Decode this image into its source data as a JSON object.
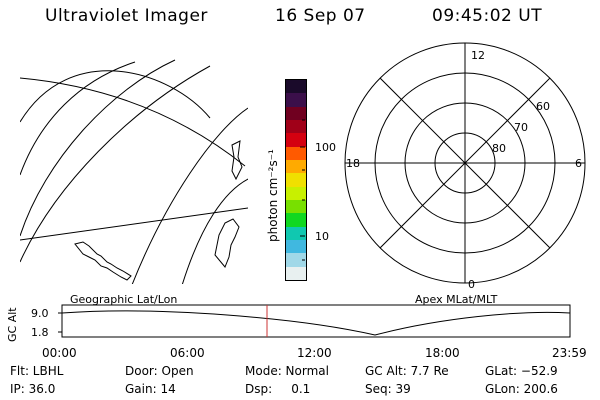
{
  "header": {
    "title": "Ultraviolet Imager",
    "date": "16 Sep 07",
    "time": "09:45:02 UT"
  },
  "colorbar": {
    "label": "photon cm⁻²s⁻¹",
    "tick_100": "100",
    "tick_10": "10",
    "colors": [
      "#1a0a2a",
      "#3b0f4a",
      "#700020",
      "#a00018",
      "#d40010",
      "#ff5a00",
      "#ffaa00",
      "#f0e000",
      "#c8f000",
      "#78e000",
      "#10d820",
      "#10c8b0",
      "#40b8e0",
      "#a0d8e8",
      "#e8f0f0"
    ]
  },
  "polar": {
    "labels": {
      "top": "12",
      "left": "18",
      "right": "6",
      "bottom": "0"
    },
    "lat_labels": [
      "60",
      "70",
      "80"
    ]
  },
  "panels": {
    "left_label": "Geographic Lat/Lon",
    "right_label": "Apex  MLat/MLT"
  },
  "altitude_plot": {
    "ylabel": "GC Alt",
    "ytick_high": "9.0",
    "ytick_low": "1.8",
    "xticks": [
      "00:00",
      "06:00",
      "12:00",
      "18:00",
      "23:59"
    ],
    "marker_color": "#cc3333"
  },
  "info": {
    "flt": "Flt: LBHL",
    "door": "Door: Open",
    "mode": "Mode: Normal",
    "gc_alt": "GC Alt: 7.7 Re",
    "glat": "GLat: −52.9",
    "ip": "IP: 36.0",
    "gain": "Gain: 14",
    "dsp": "Dsp:     0.1",
    "seq": "Seq: 39",
    "glon": "GLon: 200.6"
  }
}
